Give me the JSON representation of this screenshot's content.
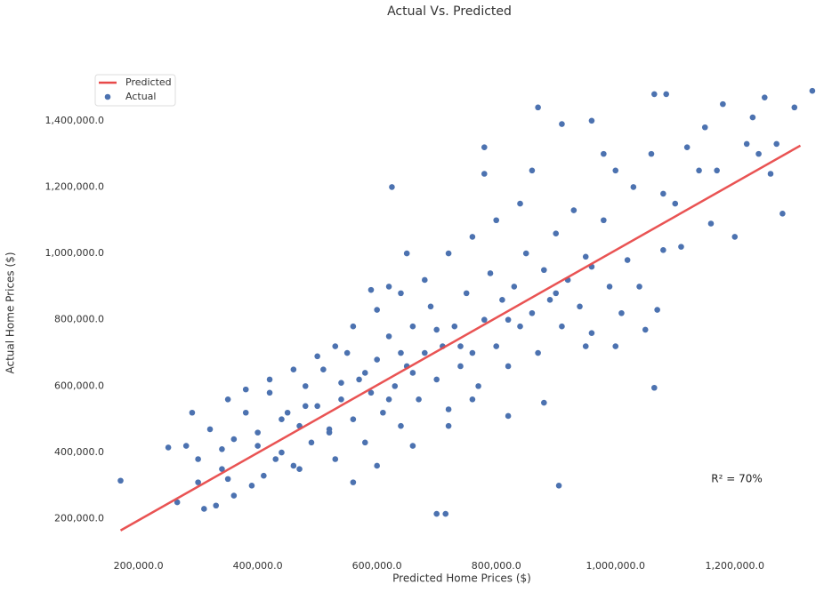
{
  "chart_data": {
    "type": "scatter",
    "title": "Actual Vs. Predicted",
    "x_label": "Predicted Home Prices ($)",
    "y_label": "Actual Home Prices ($)",
    "annotation": "R² = 70%",
    "xlim": [
      120000,
      1360000
    ],
    "ylim": [
      100000,
      1520000
    ],
    "xticks": [
      {
        "value": 200000,
        "label": "200,000.0"
      },
      {
        "value": 400000,
        "label": "400,000.0"
      },
      {
        "value": 600000,
        "label": "600,000.0"
      },
      {
        "value": 800000,
        "label": "800,000.0"
      },
      {
        "value": 1000000,
        "label": "1,000,000.0"
      },
      {
        "value": 1200000,
        "label": "1,200,000.0"
      }
    ],
    "yticks": [
      {
        "value": 200000,
        "label": "200,000.0"
      },
      {
        "value": 400000,
        "label": "400,000.0"
      },
      {
        "value": 600000,
        "label": "600,000.0"
      },
      {
        "value": 800000,
        "label": "800,000.0"
      },
      {
        "value": 1000000,
        "label": "1,000,000.0"
      },
      {
        "value": 1200000,
        "label": "1,200,000.0"
      },
      {
        "value": 1400000,
        "label": "1,400,000.0"
      }
    ],
    "grid": false,
    "legend": "upper left",
    "series": [
      {
        "name": "Predicted",
        "type": "line",
        "color": "#e84a4a",
        "x": [
          170000,
          1310000
        ],
        "values": [
          165000,
          1325000
        ]
      },
      {
        "name": "Actual",
        "type": "scatter",
        "color": "#4c72b0",
        "x": [
          170000,
          905000,
          700000,
          715000,
          625000,
          1065000,
          1330000,
          1180000,
          1250000,
          1085000,
          1065000,
          870000,
          910000,
          960000,
          1280000,
          1200000,
          1160000,
          1110000,
          650000,
          590000,
          620000,
          265000,
          310000,
          330000,
          350000,
          250000,
          280000,
          300000,
          320000,
          340000,
          360000,
          380000,
          390000,
          400000,
          420000,
          440000,
          450000,
          460000,
          470000,
          480000,
          490000,
          500000,
          510000,
          520000,
          530000,
          540000,
          550000,
          560000,
          570000,
          580000,
          590000,
          600000,
          610000,
          620000,
          630000,
          640000,
          650000,
          660000,
          670000,
          680000,
          690000,
          700000,
          710000,
          720000,
          730000,
          740000,
          750000,
          760000,
          770000,
          780000,
          790000,
          800000,
          810000,
          820000,
          830000,
          840000,
          850000,
          860000,
          870000,
          880000,
          890000,
          900000,
          910000,
          920000,
          930000,
          940000,
          950000,
          960000,
          980000,
          990000,
          1000000,
          1010000,
          1020000,
          1030000,
          1040000,
          1060000,
          1070000,
          1080000,
          1100000,
          1120000,
          1140000,
          1150000,
          1170000,
          1220000,
          1240000,
          1260000,
          1270000,
          1300000,
          1230000,
          1050000,
          1000000,
          950000,
          880000,
          820000,
          760000,
          720000,
          660000,
          600000,
          560000,
          520000,
          470000,
          430000,
          410000,
          360000,
          340000,
          300000,
          290000,
          350000,
          380000,
          420000,
          460000,
          500000,
          530000,
          560000,
          600000,
          640000,
          680000,
          720000,
          760000,
          800000,
          840000,
          780000,
          860000,
          980000,
          1080000,
          780000,
          700000,
          640000,
          580000,
          540000,
          480000,
          440000,
          400000,
          620000,
          660000,
          740000,
          820000,
          900000,
          960000
        ],
        "values": [
          315000,
          300000,
          215000,
          215000,
          1200000,
          595000,
          1490000,
          1450000,
          1470000,
          1480000,
          1480000,
          1440000,
          1390000,
          1400000,
          1120000,
          1050000,
          1090000,
          1020000,
          1000000,
          890000,
          900000,
          250000,
          230000,
          240000,
          320000,
          415000,
          420000,
          380000,
          470000,
          350000,
          440000,
          520000,
          300000,
          460000,
          580000,
          400000,
          520000,
          360000,
          480000,
          600000,
          430000,
          540000,
          650000,
          470000,
          380000,
          560000,
          700000,
          500000,
          620000,
          430000,
          580000,
          680000,
          520000,
          750000,
          600000,
          480000,
          660000,
          780000,
          560000,
          700000,
          840000,
          620000,
          720000,
          530000,
          780000,
          660000,
          880000,
          700000,
          600000,
          800000,
          940000,
          720000,
          860000,
          660000,
          900000,
          780000,
          1000000,
          820000,
          700000,
          950000,
          860000,
          1060000,
          780000,
          920000,
          1130000,
          840000,
          990000,
          760000,
          1100000,
          900000,
          1250000,
          820000,
          980000,
          1200000,
          900000,
          1300000,
          830000,
          1010000,
          1150000,
          1320000,
          1250000,
          1380000,
          1250000,
          1330000,
          1300000,
          1240000,
          1330000,
          1440000,
          1410000,
          770000,
          720000,
          720000,
          550000,
          510000,
          560000,
          480000,
          420000,
          360000,
          310000,
          460000,
          350000,
          380000,
          330000,
          270000,
          410000,
          310000,
          520000,
          560000,
          590000,
          620000,
          650000,
          690000,
          720000,
          780000,
          830000,
          880000,
          920000,
          1000000,
          1050000,
          1100000,
          1150000,
          1320000,
          1250000,
          1300000,
          1180000,
          1240000,
          770000,
          700000,
          640000,
          610000,
          540000,
          500000,
          420000,
          560000,
          640000,
          720000,
          800000,
          880000,
          960000
        ]
      }
    ]
  }
}
